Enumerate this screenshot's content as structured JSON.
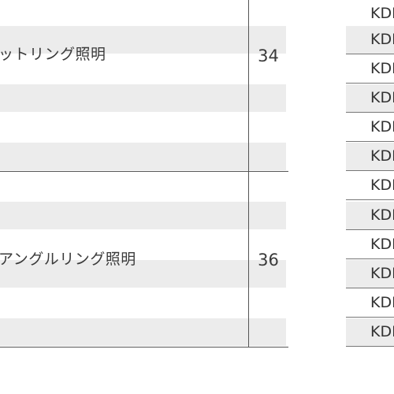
{
  "left_table": {
    "groups": [
      {
        "name": "ットリング照明",
        "page": "34"
      },
      {
        "name": "アングルリング照明",
        "page": "36"
      }
    ]
  },
  "right_column": {
    "codes": [
      "KDI",
      "KDI",
      "KDI",
      "KDI",
      "KDI",
      "KDI",
      "KDI",
      "KDI",
      "KDI",
      "KDI",
      "KDI",
      "KDI"
    ]
  }
}
